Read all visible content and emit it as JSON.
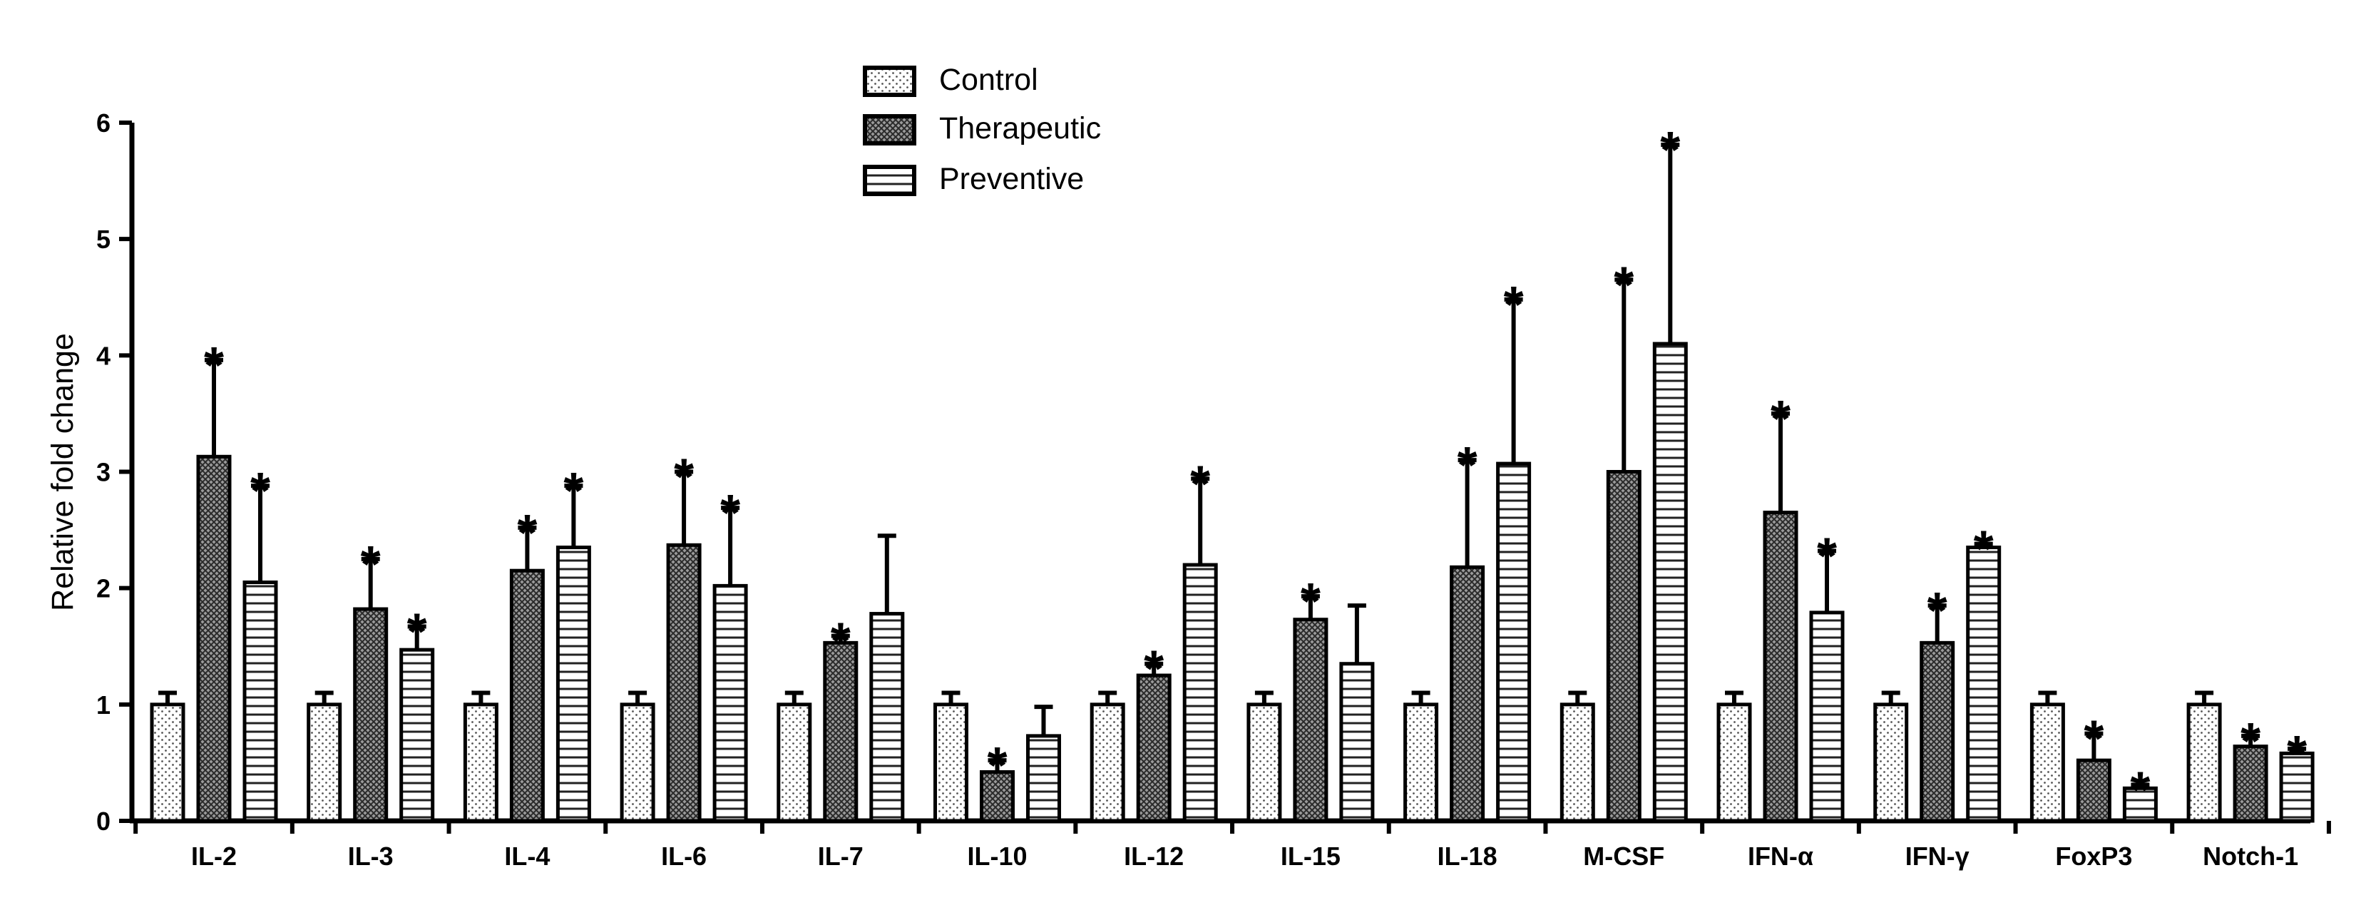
{
  "chart_data": {
    "type": "bar",
    "title": "",
    "xlabel": "",
    "ylabel": "Relative fold change",
    "ylim": [
      0,
      6
    ],
    "yticks": [
      "0",
      "1",
      "2",
      "3",
      "4",
      "5",
      "6"
    ],
    "categories": [
      "IL-2",
      "IL-3",
      "IL-4",
      "IL-6",
      "IL-7",
      "IL-10",
      "IL-12",
      "IL-15",
      "IL-18",
      "M-CSF",
      "IFN-α",
      "IFN-γ",
      "FoxP3",
      "Notch-1"
    ],
    "legend_position": "top-center",
    "series": [
      {
        "name": "Control",
        "pattern": "dots",
        "values": [
          1,
          1,
          1,
          1,
          1,
          1,
          1,
          1,
          1,
          1,
          1,
          1,
          1,
          1
        ],
        "errors": [
          0.1,
          0.1,
          0.1,
          0.1,
          0.1,
          0.1,
          0.1,
          0.1,
          0.1,
          0.1,
          0.1,
          0.1,
          0.1,
          0.1
        ],
        "significant": [
          false,
          false,
          false,
          false,
          false,
          false,
          false,
          false,
          false,
          false,
          false,
          false,
          false,
          false
        ]
      },
      {
        "name": "Therapeutic",
        "pattern": "crosshatch",
        "values": [
          3.13,
          1.82,
          2.15,
          2.37,
          1.53,
          0.42,
          1.25,
          1.73,
          2.18,
          3.0,
          2.65,
          1.53,
          0.52,
          0.64
        ],
        "errors": [
          0.83,
          0.43,
          0.37,
          0.63,
          0.06,
          0.1,
          0.1,
          0.2,
          0.92,
          1.65,
          0.85,
          0.32,
          0.23,
          0.09
        ],
        "significant": [
          true,
          true,
          true,
          true,
          true,
          true,
          true,
          true,
          true,
          true,
          true,
          true,
          true,
          true
        ]
      },
      {
        "name": "Preventive",
        "pattern": "horizontal-lines",
        "values": [
          2.05,
          1.47,
          2.35,
          2.02,
          1.78,
          0.73,
          2.2,
          1.35,
          3.07,
          4.1,
          1.79,
          2.35,
          0.28,
          0.58
        ],
        "errors": [
          0.83,
          0.2,
          0.53,
          0.67,
          0.67,
          0.25,
          0.74,
          0.5,
          1.41,
          1.71,
          0.53,
          0.03,
          0.03,
          0.04
        ],
        "significant": [
          true,
          true,
          true,
          true,
          false,
          false,
          true,
          false,
          true,
          true,
          true,
          true,
          true,
          true
        ]
      }
    ],
    "significance_marker": "*"
  }
}
